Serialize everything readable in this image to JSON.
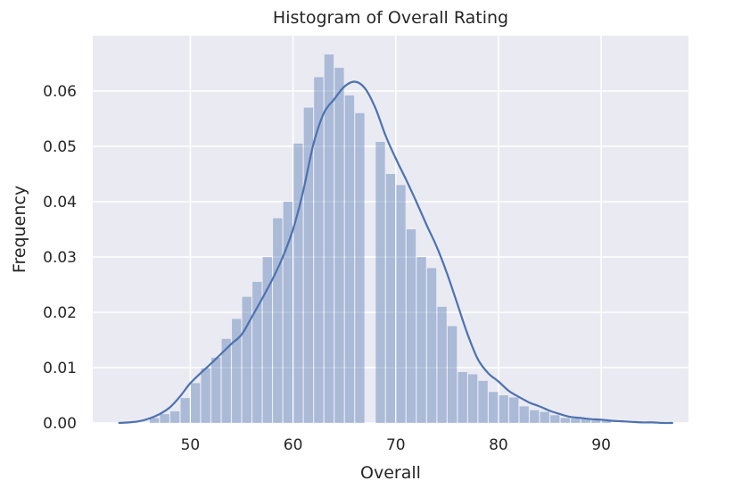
{
  "chart_data": {
    "type": "bar",
    "title": "Histogram of Overall Rating",
    "xlabel": "Overall",
    "ylabel": "Frequency",
    "xlim": [
      40.5,
      98.5
    ],
    "ylim": [
      0,
      0.07
    ],
    "xticks": [
      50,
      60,
      70,
      80,
      90
    ],
    "xtick_labels": [
      "50",
      "60",
      "70",
      "80",
      "90"
    ],
    "yticks": [
      0.0,
      0.01,
      0.02,
      0.03,
      0.04,
      0.05,
      0.06
    ],
    "ytick_labels": [
      "0.00",
      "0.01",
      "0.02",
      "0.03",
      "0.04",
      "0.05",
      "0.06"
    ],
    "grid": true,
    "legend": "none",
    "bins": {
      "bin_start": 46,
      "bin_width": 1,
      "values": [
        0.0009,
        0.0016,
        0.0021,
        0.0045,
        0.0072,
        0.0099,
        0.0118,
        0.0152,
        0.0188,
        0.0228,
        0.0255,
        0.03,
        0.037,
        0.04,
        0.0505,
        0.057,
        0.0625,
        0.0666,
        0.0642,
        0.0592,
        0.056,
        0.0,
        0.0508,
        0.045,
        0.043,
        0.035,
        0.03,
        0.028,
        0.021,
        0.0175,
        0.0092,
        0.0088,
        0.0076,
        0.0056,
        0.005,
        0.0046,
        0.003,
        0.0023,
        0.002,
        0.0014,
        0.0009,
        0.0008,
        0.0007,
        0.0005,
        0.0004
      ]
    },
    "kde": {
      "x": [
        43,
        44,
        45,
        46,
        47,
        48,
        49,
        50,
        51,
        52,
        53,
        54,
        55,
        56,
        57,
        58,
        59,
        60,
        61,
        62,
        63,
        64,
        65,
        66,
        67,
        68,
        69,
        70,
        71,
        72,
        73,
        74,
        75,
        76,
        77,
        78,
        79,
        80,
        81,
        82,
        83,
        84,
        85,
        86,
        87,
        88,
        89,
        90,
        91,
        92,
        93,
        94,
        95,
        96,
        97
      ],
      "y": [
        0.0,
        0.0001,
        0.0003,
        0.0008,
        0.0016,
        0.0028,
        0.0048,
        0.0072,
        0.009,
        0.0107,
        0.0125,
        0.0143,
        0.016,
        0.0192,
        0.0225,
        0.026,
        0.03,
        0.035,
        0.042,
        0.0505,
        0.056,
        0.0585,
        0.0608,
        0.0617,
        0.0605,
        0.057,
        0.052,
        0.0478,
        0.044,
        0.04,
        0.0358,
        0.0318,
        0.027,
        0.0215,
        0.016,
        0.0115,
        0.009,
        0.0075,
        0.0058,
        0.0047,
        0.0037,
        0.003,
        0.0022,
        0.0016,
        0.0011,
        0.0009,
        0.0007,
        0.0006,
        0.0004,
        0.0003,
        0.0002,
        0.0001,
        0.0001,
        0.0,
        0.0
      ]
    }
  }
}
